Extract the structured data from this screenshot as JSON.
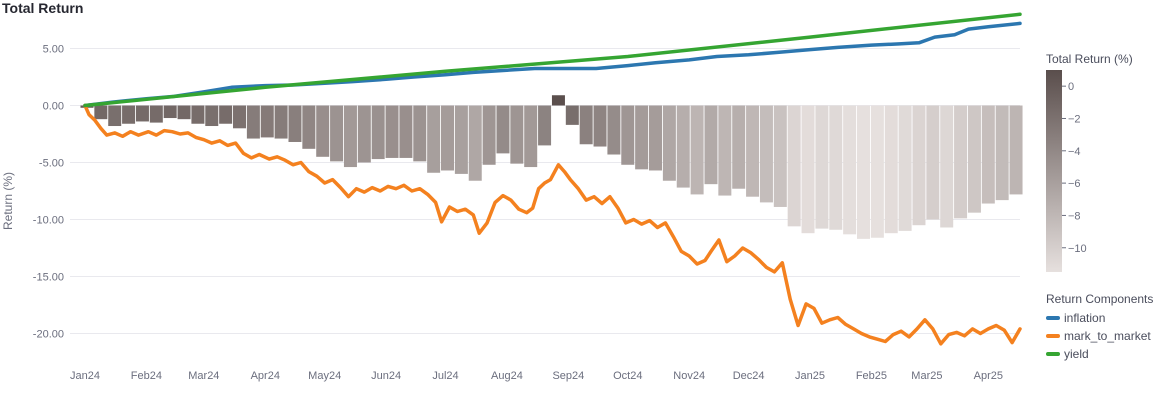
{
  "page": {
    "title": "Total Return"
  },
  "colors": {
    "inflation": "#2c77b0",
    "mark_to_market": "#f4811f",
    "yield": "#35a532",
    "bar_dark": "#5a4e4c",
    "bar_light": "#e6e0de",
    "grid": "#e9e9ee"
  },
  "chart_data": {
    "type": "line",
    "title": "Total Return",
    "ylabel": "Return (%)",
    "xlabel": "",
    "ylim": [
      -22.5,
      7.5
    ],
    "yticks": [
      5,
      0,
      -5,
      -10,
      -15,
      -20
    ],
    "ytick_labels": [
      "5.00",
      "0.00",
      "-5.00",
      "-10.00",
      "-15.00",
      "-20.00"
    ],
    "x_range": [
      "2024-01-01",
      "2025-04-17"
    ],
    "xticks": [
      {
        "date": "2024-01-01",
        "label": "Jan24"
      },
      {
        "date": "2024-02-01",
        "label": "Feb24"
      },
      {
        "date": "2024-03-01",
        "label": "Mar24"
      },
      {
        "date": "2024-04-01",
        "label": "Apr24"
      },
      {
        "date": "2024-05-01",
        "label": "May24"
      },
      {
        "date": "2024-06-01",
        "label": "Jun24"
      },
      {
        "date": "2024-07-01",
        "label": "Jul24"
      },
      {
        "date": "2024-08-01",
        "label": "Aug24"
      },
      {
        "date": "2024-09-01",
        "label": "Sep24"
      },
      {
        "date": "2024-10-01",
        "label": "Oct24"
      },
      {
        "date": "2024-11-01",
        "label": "Nov24"
      },
      {
        "date": "2024-12-01",
        "label": "Dec24"
      },
      {
        "date": "2025-01-01",
        "label": "Jan25"
      },
      {
        "date": "2025-02-01",
        "label": "Feb25"
      },
      {
        "date": "2025-03-01",
        "label": "Mar25"
      },
      {
        "date": "2025-04-01",
        "label": "Apr25"
      }
    ],
    "legend": {
      "title": "Return Components",
      "position": "right",
      "entries": [
        "inflation",
        "mark_to_market",
        "yield"
      ]
    },
    "colorbar": {
      "title": "Total Return (%)",
      "range": [
        -11.5,
        1.0
      ],
      "ticks": [
        0,
        -2,
        -4,
        -6,
        -8,
        -10
      ],
      "tick_labels": [
        "0",
        "−2",
        "−4",
        "−6",
        "−8",
        "−10"
      ]
    },
    "series": [
      {
        "name": "inflation",
        "type": "line",
        "points": [
          [
            "2024-01-01",
            0.0
          ],
          [
            "2024-01-15",
            0.3
          ],
          [
            "2024-02-01",
            0.6
          ],
          [
            "2024-02-15",
            0.8
          ],
          [
            "2024-03-01",
            1.2
          ],
          [
            "2024-03-15",
            1.6
          ],
          [
            "2024-04-01",
            1.75
          ],
          [
            "2024-04-15",
            1.8
          ],
          [
            "2024-05-01",
            1.95
          ],
          [
            "2024-05-15",
            2.1
          ],
          [
            "2024-06-01",
            2.3
          ],
          [
            "2024-06-15",
            2.5
          ],
          [
            "2024-07-01",
            2.7
          ],
          [
            "2024-07-15",
            2.9
          ],
          [
            "2024-08-01",
            3.1
          ],
          [
            "2024-08-15",
            3.25
          ],
          [
            "2024-09-01",
            3.25
          ],
          [
            "2024-09-15",
            3.25
          ],
          [
            "2024-10-01",
            3.5
          ],
          [
            "2024-10-15",
            3.75
          ],
          [
            "2024-11-01",
            4.0
          ],
          [
            "2024-11-15",
            4.3
          ],
          [
            "2024-12-01",
            4.45
          ],
          [
            "2024-12-15",
            4.65
          ],
          [
            "2025-01-01",
            4.9
          ],
          [
            "2025-01-15",
            5.1
          ],
          [
            "2025-02-01",
            5.3
          ],
          [
            "2025-02-15",
            5.4
          ],
          [
            "2025-02-25",
            5.5
          ],
          [
            "2025-03-05",
            6.0
          ],
          [
            "2025-03-15",
            6.2
          ],
          [
            "2025-03-22",
            6.7
          ],
          [
            "2025-04-01",
            6.9
          ],
          [
            "2025-04-17",
            7.2
          ]
        ]
      },
      {
        "name": "mark_to_market",
        "type": "line",
        "points": [
          [
            "2024-01-01",
            0.0
          ],
          [
            "2024-01-03",
            -0.8
          ],
          [
            "2024-01-06",
            -1.3
          ],
          [
            "2024-01-09",
            -2.0
          ],
          [
            "2024-01-12",
            -2.6
          ],
          [
            "2024-01-16",
            -2.4
          ],
          [
            "2024-01-20",
            -2.7
          ],
          [
            "2024-01-24",
            -2.3
          ],
          [
            "2024-01-28",
            -2.6
          ],
          [
            "2024-02-02",
            -2.3
          ],
          [
            "2024-02-06",
            -2.6
          ],
          [
            "2024-02-10",
            -2.2
          ],
          [
            "2024-02-14",
            -2.3
          ],
          [
            "2024-02-18",
            -2.5
          ],
          [
            "2024-02-22",
            -2.4
          ],
          [
            "2024-02-26",
            -2.8
          ],
          [
            "2024-03-01",
            -3.0
          ],
          [
            "2024-03-05",
            -3.3
          ],
          [
            "2024-03-09",
            -3.1
          ],
          [
            "2024-03-13",
            -3.5
          ],
          [
            "2024-03-17",
            -3.3
          ],
          [
            "2024-03-21",
            -4.2
          ],
          [
            "2024-03-25",
            -4.6
          ],
          [
            "2024-03-29",
            -4.3
          ],
          [
            "2024-04-03",
            -4.7
          ],
          [
            "2024-04-07",
            -4.5
          ],
          [
            "2024-04-11",
            -4.8
          ],
          [
            "2024-04-15",
            -5.2
          ],
          [
            "2024-04-19",
            -5.0
          ],
          [
            "2024-04-23",
            -5.8
          ],
          [
            "2024-04-27",
            -6.2
          ],
          [
            "2024-05-01",
            -6.8
          ],
          [
            "2024-05-05",
            -6.5
          ],
          [
            "2024-05-09",
            -7.2
          ],
          [
            "2024-05-13",
            -8.0
          ],
          [
            "2024-05-17",
            -7.3
          ],
          [
            "2024-05-21",
            -7.6
          ],
          [
            "2024-05-25",
            -7.2
          ],
          [
            "2024-05-29",
            -7.5
          ],
          [
            "2024-06-02",
            -7.1
          ],
          [
            "2024-06-06",
            -7.3
          ],
          [
            "2024-06-10",
            -7.0
          ],
          [
            "2024-06-14",
            -7.5
          ],
          [
            "2024-06-18",
            -7.3
          ],
          [
            "2024-06-22",
            -7.8
          ],
          [
            "2024-06-26",
            -8.5
          ],
          [
            "2024-06-29",
            -10.2
          ],
          [
            "2024-07-03",
            -8.9
          ],
          [
            "2024-07-07",
            -9.3
          ],
          [
            "2024-07-11",
            -9.1
          ],
          [
            "2024-07-15",
            -9.6
          ],
          [
            "2024-07-18",
            -11.2
          ],
          [
            "2024-07-22",
            -10.3
          ],
          [
            "2024-07-26",
            -8.5
          ],
          [
            "2024-07-30",
            -7.9
          ],
          [
            "2024-08-03",
            -8.3
          ],
          [
            "2024-08-07",
            -9.1
          ],
          [
            "2024-08-11",
            -9.4
          ],
          [
            "2024-08-14",
            -9.0
          ],
          [
            "2024-08-17",
            -7.3
          ],
          [
            "2024-08-20",
            -6.8
          ],
          [
            "2024-08-23",
            -6.5
          ],
          [
            "2024-08-27",
            -5.2
          ],
          [
            "2024-08-30",
            -5.8
          ],
          [
            "2024-09-02",
            -6.5
          ],
          [
            "2024-09-06",
            -7.3
          ],
          [
            "2024-09-10",
            -8.3
          ],
          [
            "2024-09-14",
            -8.0
          ],
          [
            "2024-09-18",
            -8.6
          ],
          [
            "2024-09-22",
            -8.0
          ],
          [
            "2024-09-26",
            -9.0
          ],
          [
            "2024-09-30",
            -10.3
          ],
          [
            "2024-10-04",
            -10.0
          ],
          [
            "2024-10-08",
            -10.4
          ],
          [
            "2024-10-12",
            -10.1
          ],
          [
            "2024-10-16",
            -10.7
          ],
          [
            "2024-10-20",
            -10.3
          ],
          [
            "2024-10-24",
            -11.5
          ],
          [
            "2024-10-28",
            -12.8
          ],
          [
            "2024-11-01",
            -13.2
          ],
          [
            "2024-11-05",
            -13.9
          ],
          [
            "2024-11-09",
            -13.6
          ],
          [
            "2024-11-12",
            -12.8
          ],
          [
            "2024-11-16",
            -11.8
          ],
          [
            "2024-11-20",
            -13.7
          ],
          [
            "2024-11-24",
            -13.2
          ],
          [
            "2024-11-28",
            -12.5
          ],
          [
            "2024-12-02",
            -12.9
          ],
          [
            "2024-12-06",
            -13.5
          ],
          [
            "2024-12-10",
            -14.2
          ],
          [
            "2024-12-14",
            -14.6
          ],
          [
            "2024-12-18",
            -13.8
          ],
          [
            "2024-12-22",
            -17.0
          ],
          [
            "2024-12-26",
            -19.3
          ],
          [
            "2024-12-30",
            -17.4
          ],
          [
            "2025-01-03",
            -17.8
          ],
          [
            "2025-01-07",
            -19.1
          ],
          [
            "2025-01-11",
            -18.8
          ],
          [
            "2025-01-15",
            -18.6
          ],
          [
            "2025-01-19",
            -19.2
          ],
          [
            "2025-01-23",
            -19.6
          ],
          [
            "2025-01-27",
            -20.0
          ],
          [
            "2025-01-31",
            -20.3
          ],
          [
            "2025-02-04",
            -20.5
          ],
          [
            "2025-02-08",
            -20.7
          ],
          [
            "2025-02-12",
            -20.1
          ],
          [
            "2025-02-16",
            -19.8
          ],
          [
            "2025-02-20",
            -20.3
          ],
          [
            "2025-02-24",
            -19.6
          ],
          [
            "2025-02-28",
            -18.8
          ],
          [
            "2025-03-04",
            -19.6
          ],
          [
            "2025-03-08",
            -20.9
          ],
          [
            "2025-03-12",
            -20.1
          ],
          [
            "2025-03-16",
            -19.9
          ],
          [
            "2025-03-20",
            -20.2
          ],
          [
            "2025-03-24",
            -19.6
          ],
          [
            "2025-03-28",
            -20.0
          ],
          [
            "2025-04-01",
            -19.6
          ],
          [
            "2025-04-05",
            -19.3
          ],
          [
            "2025-04-09",
            -19.7
          ],
          [
            "2025-04-13",
            -20.8
          ],
          [
            "2025-04-17",
            -19.6
          ]
        ]
      },
      {
        "name": "yield",
        "type": "line",
        "points": [
          [
            "2024-01-01",
            0.0
          ],
          [
            "2024-04-01",
            1.6
          ],
          [
            "2024-07-01",
            3.0
          ],
          [
            "2024-10-01",
            4.3
          ],
          [
            "2025-01-01",
            6.0
          ],
          [
            "2025-04-17",
            8.0
          ]
        ]
      },
      {
        "name": "Total Return",
        "type": "bar",
        "points": [
          [
            "2024-01-02",
            -0.2
          ],
          [
            "2024-01-09",
            -1.2
          ],
          [
            "2024-01-16",
            -1.8
          ],
          [
            "2024-01-23",
            -1.6
          ],
          [
            "2024-01-30",
            -1.4
          ],
          [
            "2024-02-06",
            -1.5
          ],
          [
            "2024-02-13",
            -1.1
          ],
          [
            "2024-02-20",
            -1.2
          ],
          [
            "2024-02-27",
            -1.6
          ],
          [
            "2024-03-05",
            -1.8
          ],
          [
            "2024-03-12",
            -1.6
          ],
          [
            "2024-03-19",
            -2.0
          ],
          [
            "2024-03-26",
            -2.9
          ],
          [
            "2024-04-02",
            -2.8
          ],
          [
            "2024-04-09",
            -2.9
          ],
          [
            "2024-04-16",
            -3.2
          ],
          [
            "2024-04-23",
            -3.8
          ],
          [
            "2024-04-30",
            -4.5
          ],
          [
            "2024-05-07",
            -4.9
          ],
          [
            "2024-05-14",
            -5.4
          ],
          [
            "2024-05-21",
            -5.0
          ],
          [
            "2024-05-28",
            -4.7
          ],
          [
            "2024-06-04",
            -4.6
          ],
          [
            "2024-06-11",
            -4.6
          ],
          [
            "2024-06-18",
            -4.9
          ],
          [
            "2024-06-25",
            -5.9
          ],
          [
            "2024-07-02",
            -5.7
          ],
          [
            "2024-07-09",
            -6.0
          ],
          [
            "2024-07-16",
            -6.6
          ],
          [
            "2024-07-23",
            -5.2
          ],
          [
            "2024-07-30",
            -4.2
          ],
          [
            "2024-08-06",
            -5.1
          ],
          [
            "2024-08-13",
            -5.4
          ],
          [
            "2024-08-20",
            -3.5
          ],
          [
            "2024-08-27",
            0.9
          ],
          [
            "2024-09-03",
            -1.7
          ],
          [
            "2024-09-10",
            -3.4
          ],
          [
            "2024-09-17",
            -3.6
          ],
          [
            "2024-09-24",
            -4.3
          ],
          [
            "2024-10-01",
            -5.2
          ],
          [
            "2024-10-08",
            -5.6
          ],
          [
            "2024-10-15",
            -5.7
          ],
          [
            "2024-10-22",
            -6.6
          ],
          [
            "2024-10-29",
            -7.2
          ],
          [
            "2024-11-05",
            -7.8
          ],
          [
            "2024-11-12",
            -6.9
          ],
          [
            "2024-11-19",
            -7.9
          ],
          [
            "2024-11-26",
            -7.3
          ],
          [
            "2024-12-03",
            -8.0
          ],
          [
            "2024-12-10",
            -8.5
          ],
          [
            "2024-12-17",
            -8.9
          ],
          [
            "2024-12-24",
            -10.6
          ],
          [
            "2024-12-31",
            -11.2
          ],
          [
            "2025-01-07",
            -10.8
          ],
          [
            "2025-01-14",
            -10.9
          ],
          [
            "2025-01-21",
            -11.3
          ],
          [
            "2025-01-28",
            -11.7
          ],
          [
            "2025-02-04",
            -11.6
          ],
          [
            "2025-02-11",
            -11.2
          ],
          [
            "2025-02-18",
            -11.0
          ],
          [
            "2025-02-25",
            -10.5
          ],
          [
            "2025-03-04",
            -10.0
          ],
          [
            "2025-03-11",
            -10.7
          ],
          [
            "2025-03-18",
            -9.9
          ],
          [
            "2025-03-25",
            -9.4
          ],
          [
            "2025-04-01",
            -8.6
          ],
          [
            "2025-04-08",
            -8.3
          ],
          [
            "2025-04-15",
            -7.8
          ]
        ]
      }
    ]
  }
}
